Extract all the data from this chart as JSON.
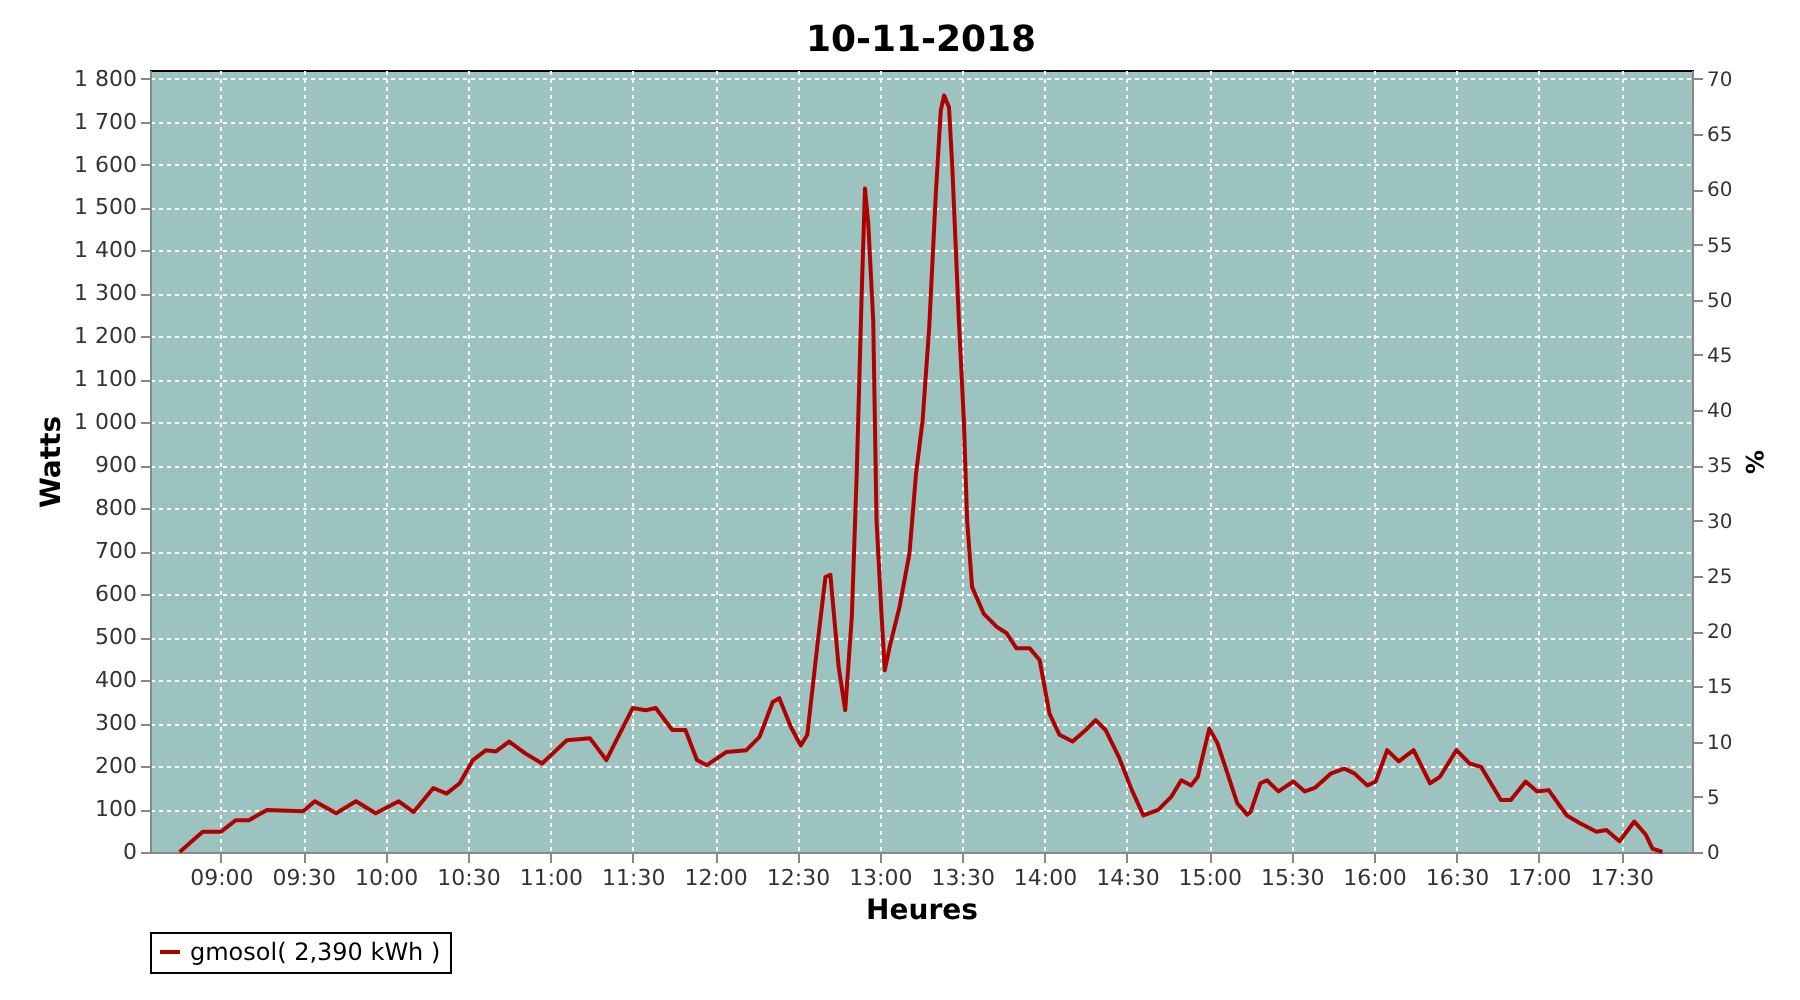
{
  "chart_data": {
    "type": "line",
    "title": "10-11-2018",
    "xlabel": "Heures",
    "ylabel": "Watts",
    "y2label": "%",
    "xlim": [
      8.57,
      17.93
    ],
    "xticks": [
      {
        "value": 9,
        "label": "09:00"
      },
      {
        "value": 9.5,
        "label": "09:30"
      },
      {
        "value": 10,
        "label": "10:00"
      },
      {
        "value": 10.5,
        "label": "10:30"
      },
      {
        "value": 11,
        "label": "11:00"
      },
      {
        "value": 11.5,
        "label": "11:30"
      },
      {
        "value": 12,
        "label": "12:00"
      },
      {
        "value": 12.5,
        "label": "12:30"
      },
      {
        "value": 13,
        "label": "13:00"
      },
      {
        "value": 13.5,
        "label": "13:30"
      },
      {
        "value": 14,
        "label": "14:00"
      },
      {
        "value": 14.5,
        "label": "14:30"
      },
      {
        "value": 15,
        "label": "15:00"
      },
      {
        "value": 15.5,
        "label": "15:30"
      },
      {
        "value": 16,
        "label": "16:00"
      },
      {
        "value": 16.5,
        "label": "16:30"
      },
      {
        "value": 17,
        "label": "17:00"
      },
      {
        "value": 17.5,
        "label": "17:30"
      }
    ],
    "ylim": [
      0,
      1820
    ],
    "yticks": [
      0,
      100,
      200,
      300,
      400,
      500,
      600,
      700,
      800,
      900,
      {
        "value": 1000,
        "label": "1 000"
      },
      {
        "value": 1100,
        "label": "1 100"
      },
      {
        "value": 1200,
        "label": "1 200"
      },
      {
        "value": 1300,
        "label": "1 300"
      },
      {
        "value": 1400,
        "label": "1 400"
      },
      {
        "value": 1500,
        "label": "1 500"
      },
      {
        "value": 1600,
        "label": "1 600"
      },
      {
        "value": 1700,
        "label": "1 700"
      },
      {
        "value": 1800,
        "label": "1 800"
      }
    ],
    "y2lim": [
      0,
      70.8
    ],
    "y2ticks": [
      0,
      5,
      10,
      15,
      20,
      25,
      30,
      35,
      40,
      45,
      50,
      55,
      60,
      65,
      70
    ],
    "grid": true,
    "legend": "bottom",
    "marker": "none",
    "line_style": "solid",
    "series": [
      {
        "name": "gmosol( 2,390 kWh )",
        "color": "#b00000",
        "x": [
          8.75,
          8.89,
          9.0,
          9.09,
          9.17,
          9.28,
          9.5,
          9.57,
          9.7,
          9.82,
          9.94,
          10.08,
          10.17,
          10.29,
          10.37,
          10.45,
          10.53,
          10.61,
          10.67,
          10.75,
          10.85,
          10.95,
          11.1,
          11.24,
          11.34,
          11.5,
          11.58,
          11.64,
          11.74,
          11.82,
          11.89,
          11.95,
          12.07,
          12.19,
          12.27,
          12.35,
          12.39,
          12.46,
          12.52,
          12.56,
          12.62,
          12.67,
          12.7,
          12.75,
          12.79,
          12.83,
          12.86,
          12.89,
          12.91,
          12.93,
          12.96,
          12.98,
          13.01,
          13.03,
          13.06,
          13.12,
          13.18,
          13.22,
          13.26,
          13.3,
          13.34,
          13.37,
          13.39,
          13.42,
          13.44,
          13.48,
          13.51,
          13.53,
          13.56,
          13.63,
          13.71,
          13.77,
          13.83,
          13.91,
          13.97,
          14.03,
          14.09,
          14.17,
          14.25,
          14.31,
          14.37,
          14.45,
          14.53,
          14.6,
          14.69,
          14.77,
          14.83,
          14.89,
          14.93,
          15.0,
          15.05,
          15.11,
          15.17,
          15.23,
          15.25,
          15.31,
          15.35,
          15.42,
          15.51,
          15.58,
          15.64,
          15.74,
          15.82,
          15.88,
          15.96,
          16.01,
          16.08,
          16.15,
          16.24,
          16.34,
          16.4,
          16.5,
          16.58,
          16.65,
          16.77,
          16.83,
          16.92,
          16.99,
          17.06,
          17.17,
          17.25,
          17.35,
          17.41,
          17.49,
          17.58,
          17.65,
          17.69,
          17.75
        ],
        "values": [
          0,
          47,
          47,
          74,
          74,
          98,
          95,
          118,
          90,
          118,
          90,
          118,
          93,
          149,
          136,
          160,
          214,
          237,
          234,
          257,
          229,
          206,
          260,
          265,
          214,
          335,
          330,
          335,
          284,
          284,
          214,
          202,
          233,
          237,
          268,
          349,
          358,
          291,
          248,
          273,
          478,
          640,
          645,
          431,
          330,
          547,
          881,
          1299,
          1544,
          1462,
          1237,
          772,
          555,
          423,
          478,
          571,
          695,
          881,
          1005,
          1222,
          1532,
          1726,
          1761,
          1733,
          1594,
          1237,
          1005,
          772,
          617,
          555,
          524,
          509,
          474,
          474,
          447,
          322,
          273,
          257,
          284,
          307,
          284,
          222,
          144,
          85,
          98,
          129,
          167,
          155,
          175,
          287,
          253,
          183,
          113,
          87,
          93,
          160,
          167,
          141,
          164,
          141,
          149,
          183,
          194,
          183,
          155,
          164,
          237,
          211,
          237,
          160,
          175,
          237,
          206,
          198,
          121,
          121,
          164,
          141,
          144,
          85,
          67,
          47,
          51,
          25,
          71,
          40,
          8,
          0
        ]
      }
    ]
  }
}
